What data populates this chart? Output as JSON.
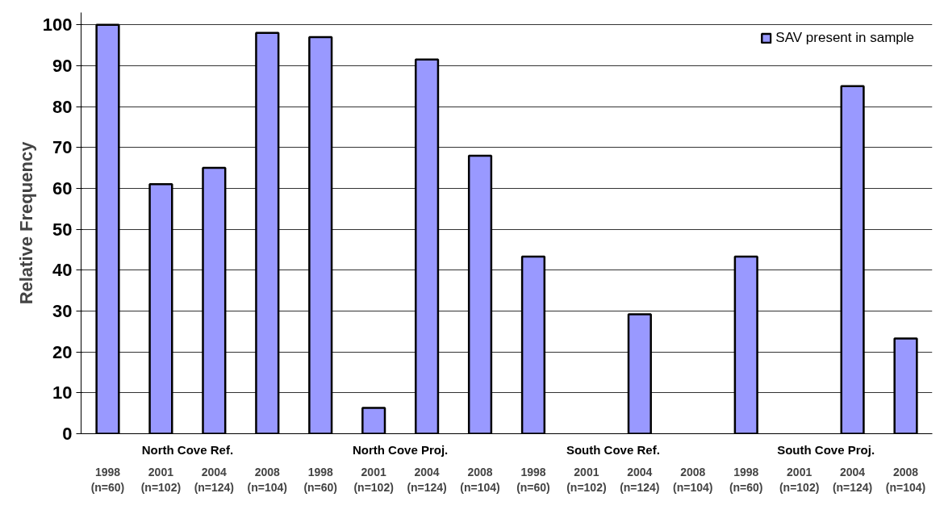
{
  "chart_data": {
    "type": "bar",
    "ylabel": "Relative Frequency",
    "categories": [
      "1998\n(n=60)",
      "2001\n(n=102)",
      "2004\n(n=124)",
      "2008\n(n=104)",
      "1998\n(n=60)",
      "2001\n(n=102)",
      "2004\n(n=124)",
      "2008\n(n=104)",
      "1998\n(n=60)",
      "2001\n(n=102)",
      "2004\n(n=124)",
      "2008\n(n=104)",
      "1998\n(n=60)",
      "2001\n(n=102)",
      "2004\n(n=124)",
      "2008\n(n=104)"
    ],
    "series": [
      {
        "name": "SAV present in sample",
        "color": "#9999ff",
        "values": [
          100,
          61,
          65,
          98,
          97,
          6.3,
          91.5,
          68,
          43.3,
          0,
          29.2,
          0,
          43.3,
          0,
          85,
          23.3
        ]
      }
    ],
    "annotations": [
      "North Cove Ref.",
      "North Cove Proj.",
      "South Cove Ref.",
      "South Cove Proj."
    ],
    "ylim": [
      0,
      103
    ],
    "yticks": [
      0,
      10,
      20,
      30,
      40,
      50,
      60,
      70,
      80,
      90,
      100
    ],
    "grid": "y",
    "legend": "top right"
  }
}
